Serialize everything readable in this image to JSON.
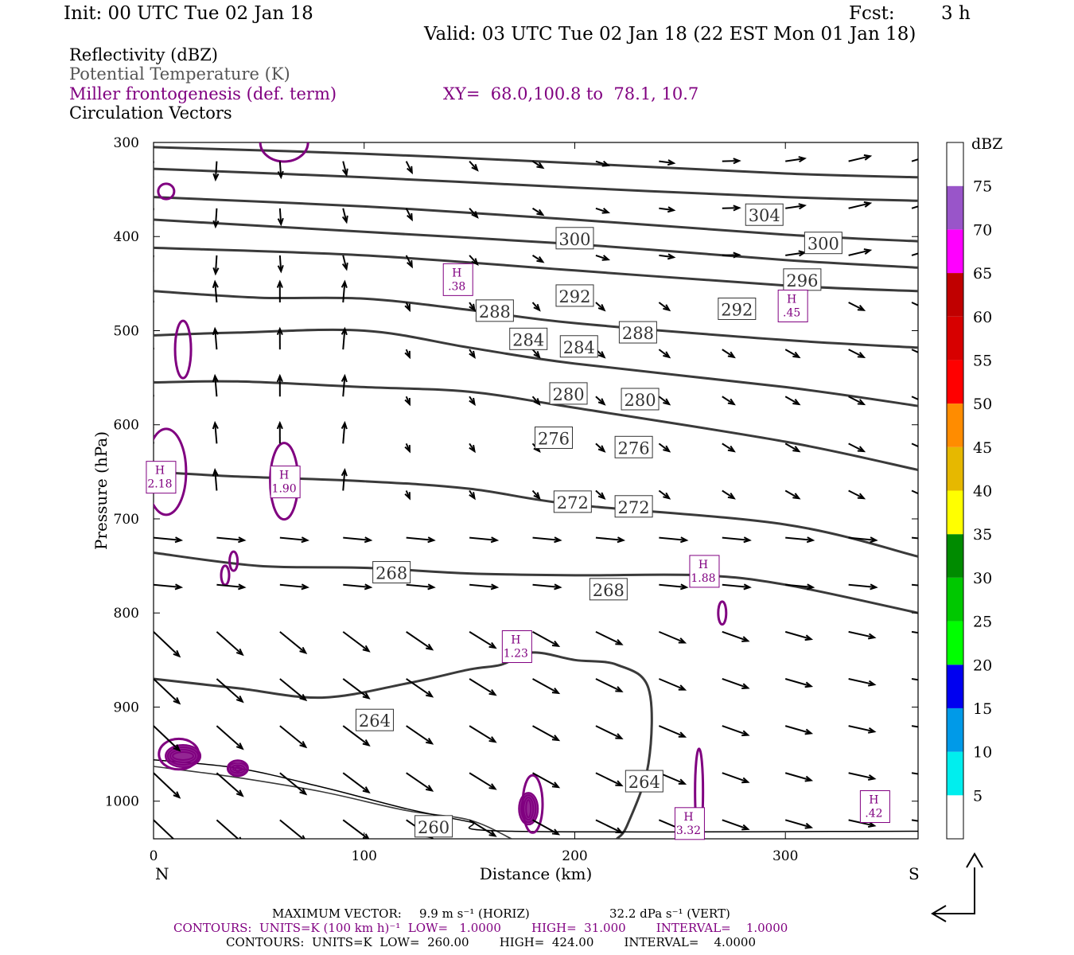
{
  "header": {
    "init": "Init: 00 UTC Tue 02 Jan 18",
    "fcst_label": "Fcst:",
    "fcst_value": "3 h",
    "valid": "Valid: 03 UTC Tue 02 Jan 18 (22 EST Mon 01 Jan 18)"
  },
  "fields": {
    "reflectivity": "Reflectivity (dBZ)",
    "theta": "Potential Temperature (K)",
    "frontogenesis": "Miller frontogenesis (def. term)",
    "xy": "XY=  68.0,100.8 to  78.1, 10.7",
    "vectors": "Circulation Vectors"
  },
  "footer": {
    "max_vector_label": "MAXIMUM VECTOR:",
    "max_horiz": "9.9 m s⁻¹ (HORIZ)",
    "max_vert": "32.2 dPa s⁻¹ (VERT)",
    "contours_fgen": "CONTOURS:  UNITS=K (100 km h)⁻¹  LOW=   1.0000        HIGH=  31.000        INTERVAL=    1.0000",
    "contours_theta": "CONTOURS:  UNITS=K  LOW=  260.00        HIGH=  424.00        INTERVAL=    4.0000"
  },
  "colors": {
    "theta_line": "#3a3a3a",
    "fgen_line": "#800080",
    "vector": "#000000"
  },
  "chart_data": {
    "type": "cross-section",
    "ylabel": "Pressure (hPa)",
    "xlabel": "Distance (km)",
    "x_left_label": "N",
    "x_right_label": "S",
    "xlim": [
      0,
      363
    ],
    "ylim": [
      1040,
      300
    ],
    "x_ticks": [
      0,
      100,
      200,
      300
    ],
    "y_ticks": [
      300,
      400,
      500,
      600,
      700,
      800,
      900,
      1000
    ],
    "theta_contours": [
      {
        "value": 304,
        "points": [
          [
            0,
            305
          ],
          [
            100,
            312
          ],
          [
            200,
            322
          ],
          [
            300,
            333
          ],
          [
            363,
            337
          ]
        ],
        "labels": [
          [
            290,
            378
          ]
        ]
      },
      {
        "value": 300,
        "points": [
          [
            0,
            328
          ],
          [
            100,
            337
          ],
          [
            200,
            348
          ],
          [
            300,
            358
          ],
          [
            363,
            362
          ]
        ],
        "labels": [
          [
            200,
            403
          ],
          [
            318,
            408
          ]
        ]
      },
      {
        "value": 296,
        "points": [
          [
            0,
            358
          ],
          [
            100,
            368
          ],
          [
            200,
            382
          ],
          [
            300,
            398
          ],
          [
            363,
            405
          ]
        ],
        "labels": [
          [
            308,
            447
          ]
        ]
      },
      {
        "value": 292,
        "points": [
          [
            0,
            382
          ],
          [
            100,
            395
          ],
          [
            200,
            408
          ],
          [
            300,
            425
          ],
          [
            363,
            433
          ]
        ],
        "labels": [
          [
            200,
            464
          ],
          [
            277,
            478
          ]
        ]
      },
      {
        "value": 288,
        "points": [
          [
            0,
            412
          ],
          [
            100,
            420
          ],
          [
            200,
            436
          ],
          [
            300,
            452
          ],
          [
            363,
            458
          ]
        ],
        "labels": [
          [
            162,
            480
          ],
          [
            230,
            503
          ]
        ]
      },
      {
        "value": 284,
        "points": [
          [
            0,
            458
          ],
          [
            50,
            465
          ],
          [
            100,
            466
          ],
          [
            150,
            478
          ],
          [
            200,
            492
          ],
          [
            300,
            510
          ],
          [
            363,
            518
          ]
        ],
        "labels": [
          [
            178,
            510
          ],
          [
            202,
            518
          ]
        ]
      },
      {
        "value": 280,
        "points": [
          [
            0,
            505
          ],
          [
            40,
            502
          ],
          [
            100,
            500
          ],
          [
            150,
            518
          ],
          [
            200,
            535
          ],
          [
            300,
            560
          ],
          [
            363,
            580
          ]
        ],
        "labels": [
          [
            197,
            568
          ],
          [
            231,
            574
          ]
        ]
      },
      {
        "value": 276,
        "points": [
          [
            0,
            555
          ],
          [
            40,
            554
          ],
          [
            100,
            560
          ],
          [
            150,
            565
          ],
          [
            200,
            582
          ],
          [
            300,
            618
          ],
          [
            363,
            648
          ]
        ],
        "labels": [
          [
            190,
            615
          ],
          [
            228,
            625
          ]
        ]
      },
      {
        "value": 272,
        "points": [
          [
            0,
            650
          ],
          [
            40,
            655
          ],
          [
            100,
            660
          ],
          [
            150,
            668
          ],
          [
            200,
            685
          ],
          [
            300,
            706
          ],
          [
            363,
            740
          ]
        ],
        "labels": [
          [
            199,
            683
          ],
          [
            228,
            688
          ]
        ]
      },
      {
        "value": 268,
        "points": [
          [
            0,
            736
          ],
          [
            50,
            750
          ],
          [
            100,
            752
          ],
          [
            150,
            758
          ],
          [
            200,
            760
          ],
          [
            260,
            760
          ],
          [
            300,
            770
          ],
          [
            363,
            800
          ]
        ],
        "labels": [
          [
            113,
            758
          ],
          [
            216,
            776
          ]
        ]
      },
      {
        "value": 264,
        "points": [
          [
            0,
            870
          ],
          [
            40,
            880
          ],
          [
            80,
            890
          ],
          [
            120,
            875
          ],
          [
            150,
            860
          ],
          [
            165,
            855
          ],
          [
            180,
            842
          ],
          [
            200,
            850
          ],
          [
            220,
            855
          ],
          [
            235,
            880
          ],
          [
            235,
            960
          ],
          [
            225,
            1025
          ],
          [
            220,
            1040
          ]
        ],
        "labels": [
          [
            105,
            915
          ],
          [
            233,
            980
          ]
        ]
      },
      {
        "value": 260,
        "points": [
          [
            0,
            963
          ],
          [
            40,
            975
          ],
          [
            80,
            990
          ],
          [
            120,
            1010
          ],
          [
            150,
            1020
          ],
          [
            170,
            1040
          ]
        ],
        "labels": [
          [
            133,
            1028
          ]
        ]
      }
    ],
    "frontogenesis_maxima": [
      {
        "label": "H",
        "value": ".38",
        "x": 144,
        "p": 450
      },
      {
        "label": "H",
        "value": ".45",
        "x": 303,
        "p": 478
      },
      {
        "label": "H",
        "value": "2.18",
        "x": 3,
        "p": 660
      },
      {
        "label": "H",
        "value": "1.90",
        "x": 62,
        "p": 665
      },
      {
        "label": "H",
        "value": "1.88",
        "x": 261,
        "p": 760
      },
      {
        "label": "H",
        "value": "1.23",
        "x": 172,
        "p": 840
      },
      {
        "label": "H",
        "value": "3.32",
        "x": 254,
        "p": 1028
      },
      {
        "label": "H",
        "value": ".42",
        "x": 342,
        "p": 1010
      }
    ],
    "reflectivity_colorbar": {
      "unit": "dBZ",
      "levels": [
        {
          "label": "",
          "color": "#ffffff"
        },
        {
          "label": "5",
          "color": "#00eeee"
        },
        {
          "label": "10",
          "color": "#009ae8"
        },
        {
          "label": "15",
          "color": "#0000f0"
        },
        {
          "label": "20",
          "color": "#00ff00"
        },
        {
          "label": "25",
          "color": "#00c800"
        },
        {
          "label": "30",
          "color": "#008b00"
        },
        {
          "label": "35",
          "color": "#ffff00"
        },
        {
          "label": "40",
          "color": "#e6b800"
        },
        {
          "label": "45",
          "color": "#ff8c00"
        },
        {
          "label": "50",
          "color": "#ff0000"
        },
        {
          "label": "55",
          "color": "#d70000"
        },
        {
          "label": "60",
          "color": "#c00000"
        },
        {
          "label": "65",
          "color": "#ff00ff"
        },
        {
          "label": "70",
          "color": "#9955c9"
        },
        {
          "label": "75",
          "color": "#ffffff"
        }
      ]
    }
  }
}
